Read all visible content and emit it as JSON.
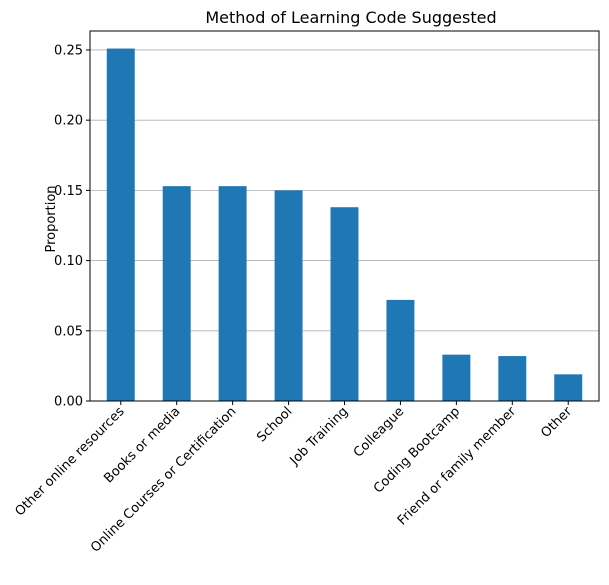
{
  "chart_data": {
    "type": "bar",
    "title": "Method of Learning Code Suggested",
    "xlabel": "",
    "ylabel": "Proportion",
    "categories": [
      "Other online resources",
      "Books or media",
      "Online Courses or Certification",
      "School",
      "Job Training",
      "Colleague",
      "Coding Bootcamp",
      "Friend or family member",
      "Other"
    ],
    "values": [
      0.251,
      0.153,
      0.153,
      0.15,
      0.138,
      0.072,
      0.033,
      0.032,
      0.019
    ],
    "ylim": [
      0,
      0.2635
    ],
    "yticks": [
      0.0,
      0.05,
      0.1,
      0.15,
      0.2,
      0.25
    ],
    "ytick_labels": [
      "0.00",
      "0.05",
      "0.10",
      "0.15",
      "0.20",
      "0.25"
    ],
    "grid": "y",
    "bar_color": "#1f77b4",
    "grid_color": "#b0b0b0"
  }
}
